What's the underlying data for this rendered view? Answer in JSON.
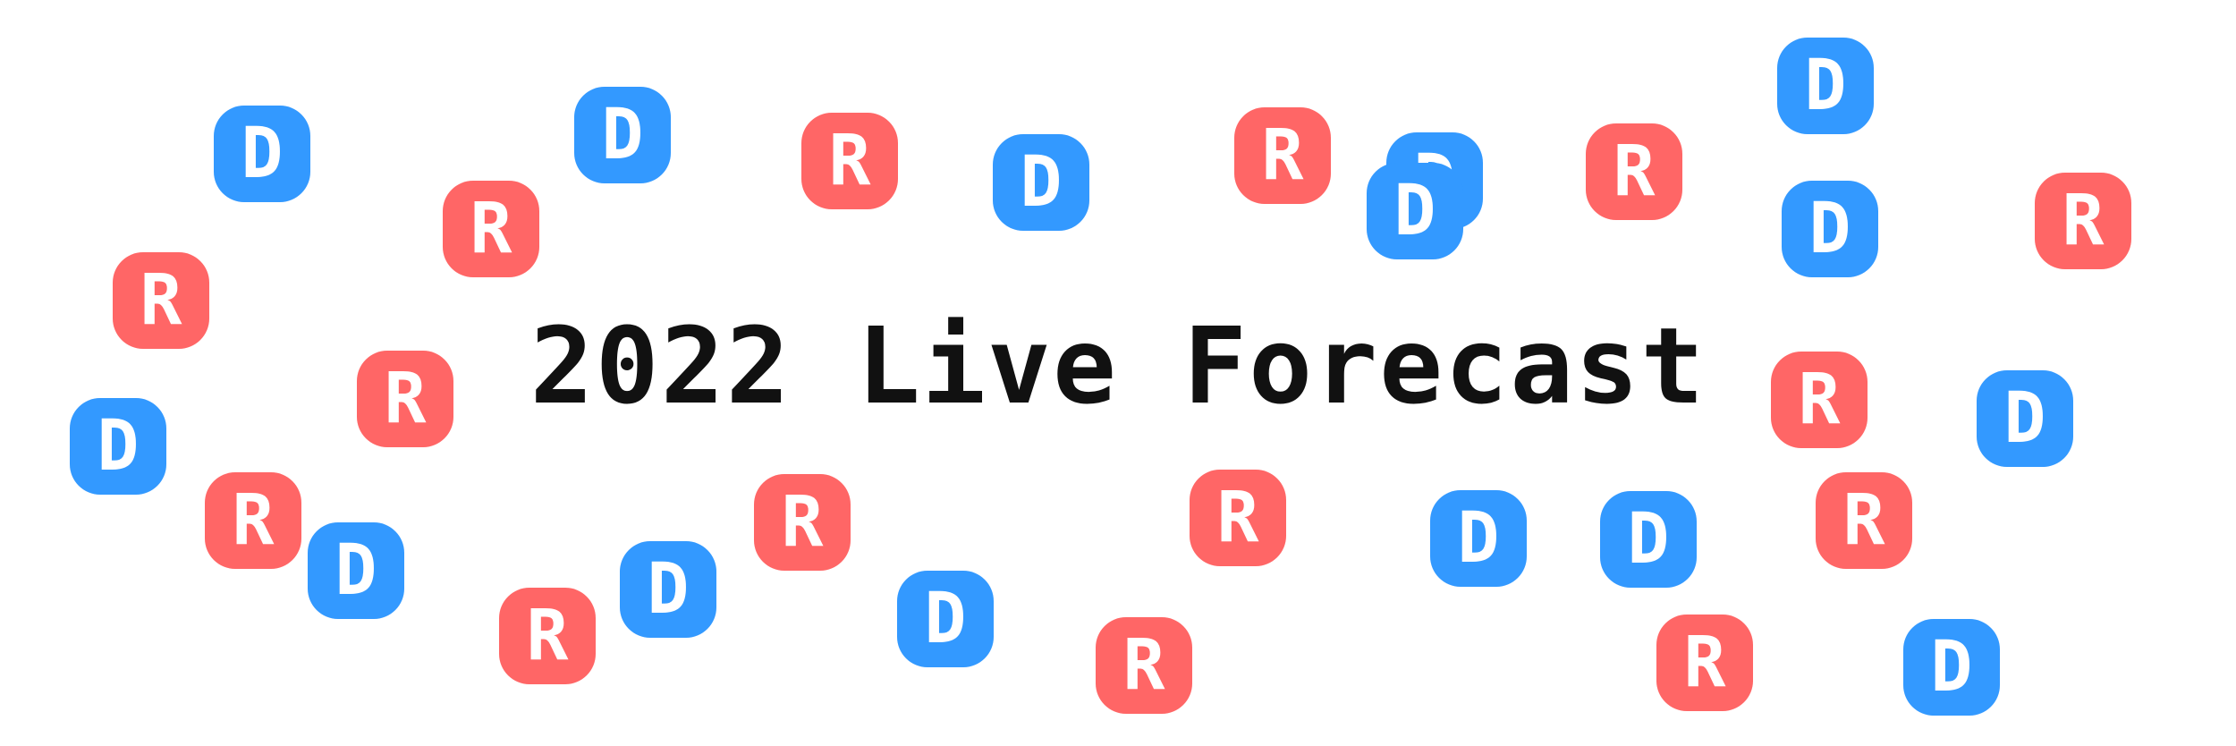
{
  "title": "2022 Live Forecast",
  "party_colors": {
    "D": "#3399ff",
    "R": "#ff6666"
  },
  "badges": [
    {
      "letter": "D"
    },
    {
      "letter": "D"
    },
    {
      "letter": "R"
    },
    {
      "letter": "D"
    },
    {
      "letter": "R"
    },
    {
      "letter": "D"
    },
    {
      "letter": "R"
    },
    {
      "letter": "R"
    },
    {
      "letter": "D"
    },
    {
      "letter": "D"
    },
    {
      "letter": "R"
    },
    {
      "letter": "D"
    },
    {
      "letter": "R"
    },
    {
      "letter": "R"
    },
    {
      "letter": "D"
    },
    {
      "letter": "R"
    },
    {
      "letter": "D"
    },
    {
      "letter": "R"
    },
    {
      "letter": "D"
    },
    {
      "letter": "R"
    },
    {
      "letter": "R"
    },
    {
      "letter": "D"
    },
    {
      "letter": "R"
    },
    {
      "letter": "D"
    },
    {
      "letter": "D"
    },
    {
      "letter": "D"
    },
    {
      "letter": "R"
    },
    {
      "letter": "R"
    },
    {
      "letter": "R"
    },
    {
      "letter": "D"
    }
  ]
}
